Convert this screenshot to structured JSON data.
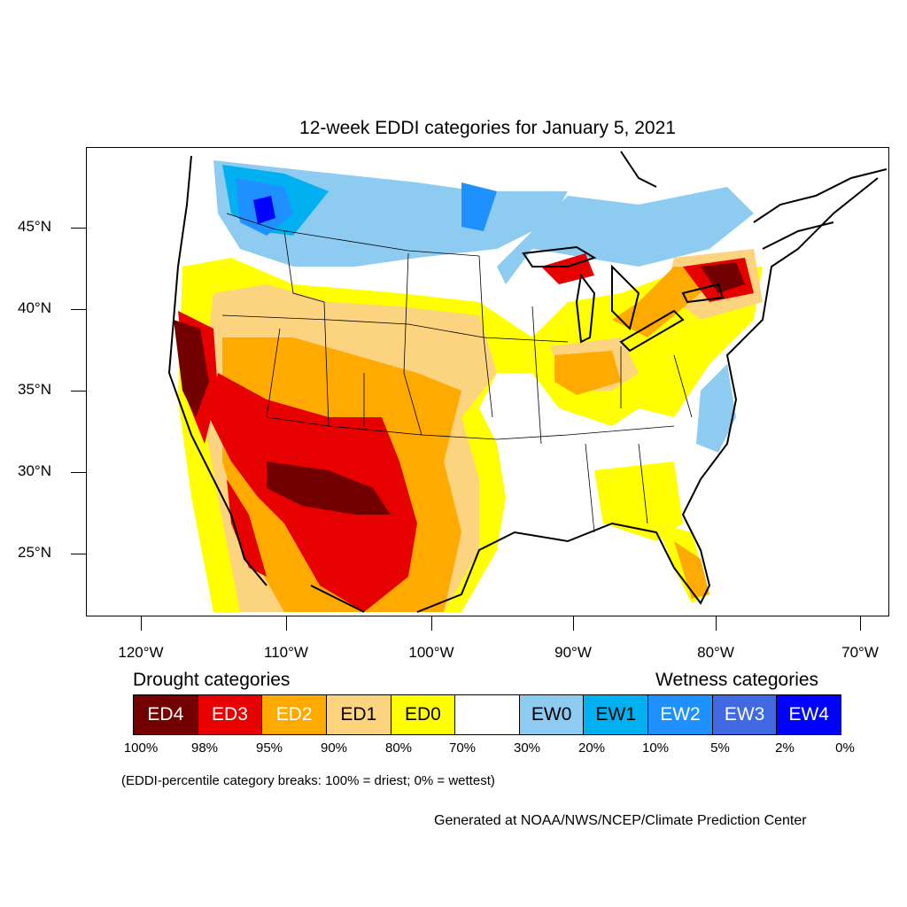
{
  "title": "12-week EDDI categories for January 5, 2021",
  "lat_labels": [
    "45°N",
    "40°N",
    "35°N",
    "30°N",
    "25°N"
  ],
  "lon_labels": [
    "120°W",
    "110°W",
    "100°W",
    "90°W",
    "80°W",
    "70°W"
  ],
  "legend": {
    "drought_heading": "Drought categories",
    "wetness_heading": "Wetness categories",
    "categories": [
      {
        "label": "ED4",
        "color": "#730000",
        "text_color": "#ffffff"
      },
      {
        "label": "ED3",
        "color": "#e60000",
        "text_color": "#ffffff"
      },
      {
        "label": "ED2",
        "color": "#ffaa00",
        "text_color": "#ffffff"
      },
      {
        "label": "ED1",
        "color": "#fcd37f",
        "text_color": "#000000"
      },
      {
        "label": "ED0",
        "color": "#ffff00",
        "text_color": "#000000"
      },
      {
        "label": "",
        "color": "#ffffff",
        "text_color": "#000000"
      },
      {
        "label": "EW0",
        "color": "#8ecbf0",
        "text_color": "#000000"
      },
      {
        "label": "EW1",
        "color": "#00b0f0",
        "text_color": "#000000"
      },
      {
        "label": "EW2",
        "color": "#1e90ff",
        "text_color": "#ffffff"
      },
      {
        "label": "EW3",
        "color": "#4169e1",
        "text_color": "#ffffff"
      },
      {
        "label": "EW4",
        "color": "#0000ff",
        "text_color": "#ffffff"
      }
    ],
    "percent_breaks": [
      "100%",
      "98%",
      "95%",
      "90%",
      "80%",
      "70%",
      "30%",
      "20%",
      "10%",
      "5%",
      "2%",
      "0%"
    ]
  },
  "note": "(EDDI-percentile category breaks: 100% = driest; 0% = wettest)",
  "credit": "Generated at NOAA/NWS/NCEP/Climate Prediction Center"
}
